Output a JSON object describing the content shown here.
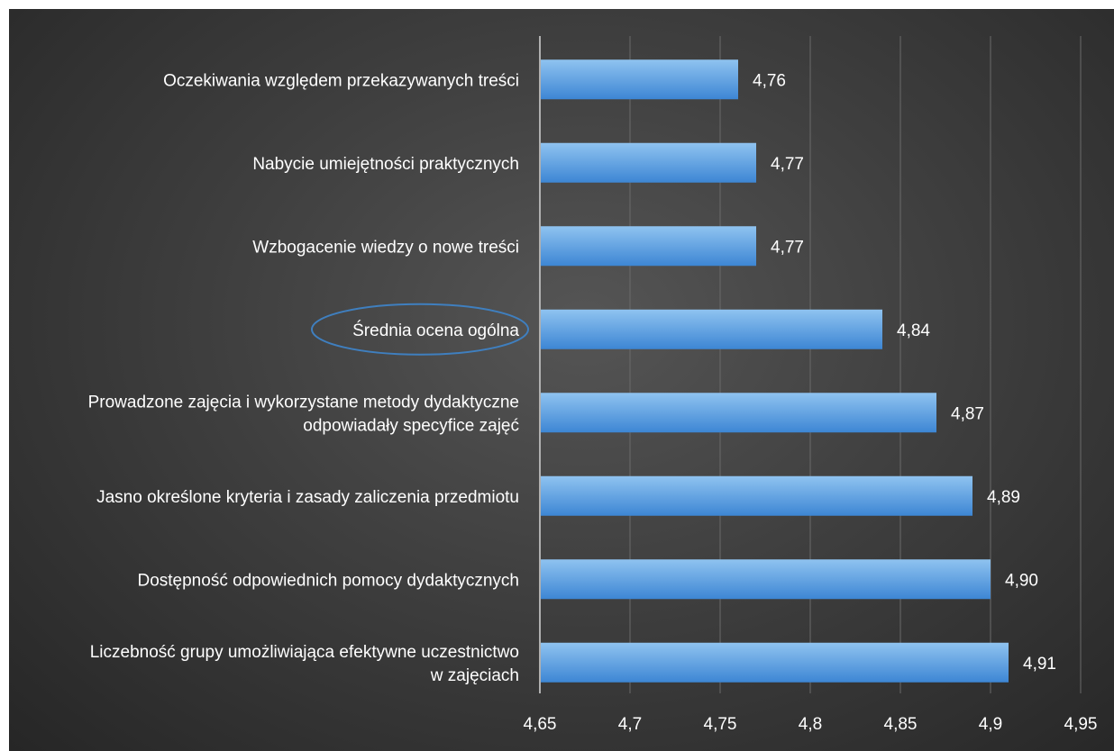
{
  "chart_data": {
    "type": "bar",
    "orientation": "horizontal",
    "categories": [
      [
        "Oczekiwania względem przekazywanych treści"
      ],
      [
        "Nabycie umiejętności praktycznych"
      ],
      [
        "Wzbogacenie wiedzy o nowe treści"
      ],
      [
        "Średnia ocena ogólna"
      ],
      [
        "Prowadzone zajęcia i wykorzystane metody dydaktyczne",
        "odpowiadały specyfice zajęć"
      ],
      [
        "Jasno określone kryteria i zasady zaliczenia przedmiotu"
      ],
      [
        "Dostępność odpowiednich pomocy dydaktycznych"
      ],
      [
        "Liczebność grupy umożliwiająca efektywne uczestnictwo",
        "w zajęciach"
      ]
    ],
    "values": [
      4.76,
      4.77,
      4.77,
      4.84,
      4.87,
      4.89,
      4.9,
      4.91
    ],
    "value_labels": [
      "4,76",
      "4,77",
      "4,77",
      "4,84",
      "4,87",
      "4,89",
      "4,90",
      "4,91"
    ],
    "xlim": [
      4.65,
      4.95
    ],
    "xticks": [
      4.65,
      4.7,
      4.75,
      4.8,
      4.85,
      4.9,
      4.95
    ],
    "xtick_labels": [
      "4,65",
      "4,7",
      "4,75",
      "4,8",
      "4,85",
      "4,9",
      "4,95"
    ],
    "highlighted_category_index": 3,
    "grid": "vertical",
    "legend": "none",
    "colors": {
      "bar_top": "#8fc3f0",
      "bar_bottom": "#3d86d4",
      "highlight_ellipse": "#3f7fbf",
      "gridline": "#6a6a6a",
      "axis": "#b0b0b0",
      "text": "#ffffff"
    }
  }
}
